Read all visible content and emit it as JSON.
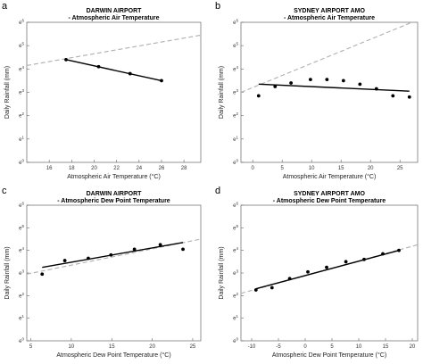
{
  "chart_data": [
    {
      "panel": "a",
      "type": "scatter",
      "title": "DARWIN AIRPORT",
      "subtitle": "- Atmospheric Air Temperature",
      "xlabel": "Atmospheric Air Temperature (°C)",
      "ylabel": "Daily Rainfall (mm)",
      "xlim": [
        14,
        29.5
      ],
      "ylim": [
        0,
        6
      ],
      "log_scale_y": true,
      "xticks": [
        16,
        18,
        20,
        22,
        24,
        26,
        28
      ],
      "yticks": [
        {
          "v": 0,
          "base": "e",
          "exp": "0"
        },
        {
          "v": 1,
          "base": "e",
          "exp": "1"
        },
        {
          "v": 2,
          "base": "e",
          "exp": "2"
        },
        {
          "v": 3,
          "base": "e",
          "exp": "3"
        },
        {
          "v": 4,
          "base": "e",
          "exp": "4"
        },
        {
          "v": 5,
          "base": "e",
          "exp": "5"
        },
        {
          "v": 6,
          "base": "e",
          "exp": "6"
        }
      ],
      "points": [
        [
          17.5,
          4.4
        ],
        [
          20.4,
          4.1
        ],
        [
          23.2,
          3.8
        ],
        [
          26.0,
          3.5
        ]
      ],
      "fit_line": [
        [
          17.5,
          4.4
        ],
        [
          26.0,
          3.5
        ]
      ],
      "reference_line": [
        [
          14,
          4.15
        ],
        [
          29.5,
          5.45
        ]
      ]
    },
    {
      "panel": "b",
      "type": "scatter",
      "title": "SYDNEY AIRPORT AMO",
      "subtitle": "- Atmospheric Air Temperature",
      "xlabel": "Atmospheric Air Temperature (°C)",
      "ylabel": "Daily Rainfall (mm)",
      "xlim": [
        -2,
        28
      ],
      "ylim": [
        0,
        6
      ],
      "log_scale_y": true,
      "xticks": [
        0,
        5,
        10,
        15,
        20,
        25
      ],
      "yticks": [
        {
          "v": 0,
          "base": "e",
          "exp": "0"
        },
        {
          "v": 1,
          "base": "e",
          "exp": "1"
        },
        {
          "v": 2,
          "base": "e",
          "exp": "2"
        },
        {
          "v": 3,
          "base": "e",
          "exp": "3"
        },
        {
          "v": 4,
          "base": "e",
          "exp": "4"
        },
        {
          "v": 5,
          "base": "e",
          "exp": "5"
        },
        {
          "v": 6,
          "base": "e",
          "exp": "6"
        }
      ],
      "points": [
        [
          1.0,
          2.85
        ],
        [
          3.8,
          3.25
        ],
        [
          6.5,
          3.4
        ],
        [
          9.8,
          3.55
        ],
        [
          12.6,
          3.55
        ],
        [
          15.4,
          3.5
        ],
        [
          18.2,
          3.35
        ],
        [
          21.0,
          3.15
        ],
        [
          23.8,
          2.85
        ],
        [
          26.6,
          2.8
        ]
      ],
      "fit_line": [
        [
          1.0,
          3.35
        ],
        [
          26.6,
          3.05
        ]
      ],
      "reference_line": [
        [
          -2,
          3.0
        ],
        [
          28,
          6.1
        ]
      ]
    },
    {
      "panel": "c",
      "type": "scatter",
      "title": "DARWIN AIRPORT",
      "subtitle": "- Atmospheric Dew Point Temperature",
      "xlabel": "Atmospheric Dew Point Temperature (°C)",
      "ylabel": "Daily Rainfall (mm)",
      "xlim": [
        4.5,
        26
      ],
      "ylim": [
        0,
        6
      ],
      "log_scale_y": true,
      "xticks": [
        5,
        10,
        15,
        20,
        25
      ],
      "yticks": [
        {
          "v": 0,
          "base": "e",
          "exp": "0"
        },
        {
          "v": 1,
          "base": "e",
          "exp": "1"
        },
        {
          "v": 2,
          "base": "e",
          "exp": "2"
        },
        {
          "v": 3,
          "base": "e",
          "exp": "3"
        },
        {
          "v": 4,
          "base": "e",
          "exp": "4"
        },
        {
          "v": 5,
          "base": "e",
          "exp": "5"
        },
        {
          "v": 6,
          "base": "e",
          "exp": "6"
        }
      ],
      "points": [
        [
          6.4,
          2.95
        ],
        [
          9.2,
          3.55
        ],
        [
          12.1,
          3.65
        ],
        [
          14.9,
          3.8
        ],
        [
          17.8,
          4.05
        ],
        [
          21.0,
          4.25
        ],
        [
          23.8,
          4.05
        ]
      ],
      "fit_line": [
        [
          6.4,
          3.25
        ],
        [
          23.8,
          4.35
        ]
      ],
      "reference_line": [
        [
          4.5,
          2.95
        ],
        [
          26,
          4.5
        ]
      ]
    },
    {
      "panel": "d",
      "type": "scatter",
      "title": "SYDNEY AIRPORT AMO",
      "subtitle": "- Atmospheric Dew Point Temperature",
      "xlabel": "Atmospheric Dew Point Temperature (°C)",
      "ylabel": "Daily Rainfall (mm)",
      "xlim": [
        -12,
        21
      ],
      "ylim": [
        0,
        6
      ],
      "log_scale_y": true,
      "xticks": [
        -10,
        -5,
        0,
        5,
        10,
        15,
        20
      ],
      "yticks": [
        {
          "v": 0,
          "base": "e",
          "exp": "0"
        },
        {
          "v": 1,
          "base": "e",
          "exp": "1"
        },
        {
          "v": 2,
          "base": "e",
          "exp": "2"
        },
        {
          "v": 3,
          "base": "e",
          "exp": "3"
        },
        {
          "v": 4,
          "base": "e",
          "exp": "4"
        },
        {
          "v": 5,
          "base": "e",
          "exp": "5"
        },
        {
          "v": 6,
          "base": "e",
          "exp": "6"
        }
      ],
      "points": [
        [
          -9.2,
          2.25
        ],
        [
          -6.2,
          2.35
        ],
        [
          -2.9,
          2.75
        ],
        [
          0.5,
          3.05
        ],
        [
          4.0,
          3.25
        ],
        [
          7.6,
          3.5
        ],
        [
          11.0,
          3.6
        ],
        [
          14.5,
          3.85
        ],
        [
          17.5,
          4.0
        ]
      ],
      "fit_line": [
        [
          -9.2,
          2.3
        ],
        [
          17.5,
          4.0
        ]
      ],
      "reference_line": [
        [
          -12,
          2.1
        ],
        [
          21,
          4.25
        ]
      ]
    }
  ]
}
